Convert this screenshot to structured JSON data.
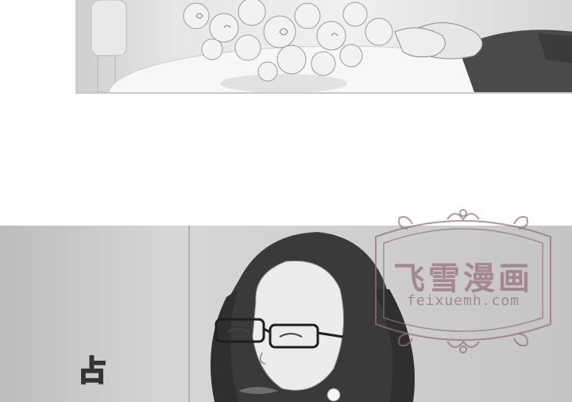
{
  "watermark": {
    "title": "飞雪漫画",
    "url": "feixuemh.com"
  },
  "caption": {
    "side_char": "占"
  },
  "colors": {
    "watermark": "#967882",
    "panel_border": "#c9c9c9"
  }
}
